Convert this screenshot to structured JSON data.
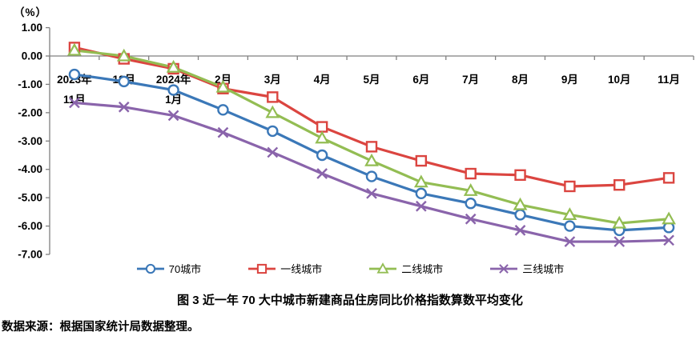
{
  "caption": "图 3 近一年 70 大中城市新建商品住房同比价格指数算数平均变化",
  "source_note": "数据来源：根据国家统计局数据整理。",
  "chart_data": {
    "type": "line",
    "title": "图 3 近一年 70 大中城市新建商品住房同比价格指数算数平均变化",
    "xlabel": "",
    "ylabel": "（%）",
    "ylim": [
      -7,
      1
    ],
    "y_ticks": [
      1,
      0,
      -1,
      -2,
      -3,
      -4,
      -5,
      -6,
      -7
    ],
    "grid": false,
    "legend_position": "bottom",
    "axis_color": "#808080",
    "text_color": "#000000",
    "categories": [
      "2023年\n11月",
      "12月",
      "2024年\n1月",
      "2月",
      "3月",
      "4月",
      "5月",
      "6月",
      "7月",
      "8月",
      "9月",
      "10月",
      "11月"
    ],
    "series": [
      {
        "id": "70-cities",
        "name": "70城市",
        "color": "#3B78B8",
        "marker": "circle",
        "values": [
          -0.65,
          -0.9,
          -1.2,
          -1.9,
          -2.65,
          -3.5,
          -4.25,
          -4.85,
          -5.2,
          -5.6,
          -6.0,
          -6.15,
          -6.05
        ]
      },
      {
        "id": "first-tier",
        "name": "一线城市",
        "color": "#DB4540",
        "marker": "square",
        "values": [
          0.3,
          -0.1,
          -0.45,
          -1.15,
          -1.45,
          -2.5,
          -3.2,
          -3.7,
          -4.15,
          -4.2,
          -4.6,
          -4.55,
          -4.3
        ]
      },
      {
        "id": "second-tier",
        "name": "二线城市",
        "color": "#93BD53",
        "marker": "triangle",
        "values": [
          0.2,
          0.0,
          -0.4,
          -1.1,
          -2.0,
          -2.9,
          -3.7,
          -4.45,
          -4.75,
          -5.25,
          -5.6,
          -5.9,
          -5.75
        ]
      },
      {
        "id": "third-tier",
        "name": "三线城市",
        "color": "#8A64AB",
        "marker": "x",
        "values": [
          -1.65,
          -1.8,
          -2.1,
          -2.7,
          -3.4,
          -4.15,
          -4.85,
          -5.3,
          -5.75,
          -6.15,
          -6.55,
          -6.55,
          -6.5
        ]
      }
    ]
  }
}
